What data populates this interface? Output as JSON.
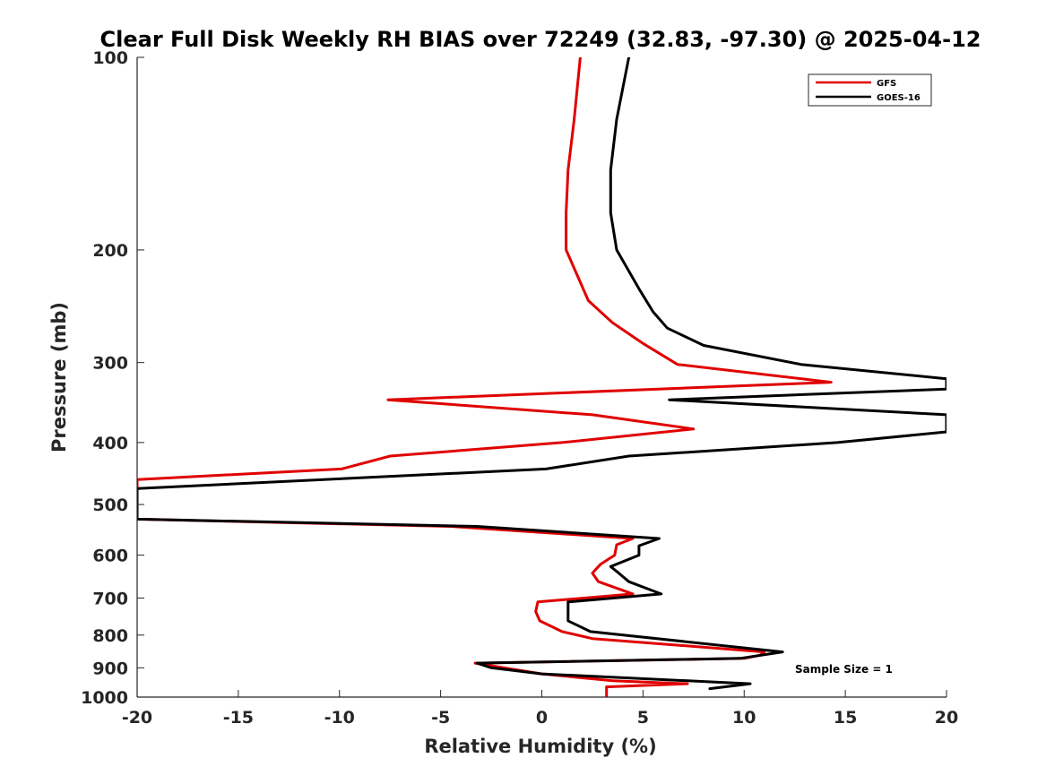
{
  "chart_data": {
    "type": "line",
    "title": "Clear Full Disk Weekly RH BIAS over 72249 (32.83, -97.30) @ 2025-04-12",
    "xlabel": "Relative Humidity (%)",
    "ylabel": "Pressure (mb)",
    "xlim": [
      -20,
      20
    ],
    "ylim": [
      100,
      1000
    ],
    "y_scale": "log",
    "y_reversed": true,
    "grid": false,
    "x_ticks": [
      -20,
      -15,
      -10,
      -5,
      0,
      5,
      10,
      15,
      20
    ],
    "x_tick_labels": [
      "-20",
      "-15",
      "-10",
      "-5",
      "0",
      "5",
      "10",
      "15",
      "20"
    ],
    "y_ticks": [
      100,
      200,
      300,
      400,
      500,
      600,
      700,
      800,
      900,
      1000
    ],
    "y_tick_labels": [
      "100",
      "200",
      "300",
      "400",
      "500",
      "600",
      "700",
      "800",
      "900",
      "1000"
    ],
    "legend_position": "top-right",
    "annotation": "Sample Size = 1",
    "series": [
      {
        "name": "GFS",
        "color": "#e00000",
        "points": [
          [
            1.9,
            100
          ],
          [
            1.6,
            125
          ],
          [
            1.3,
            150
          ],
          [
            1.2,
            175
          ],
          [
            1.2,
            200
          ],
          [
            2.3,
            240
          ],
          [
            3.5,
            260
          ],
          [
            5.0,
            280
          ],
          [
            6.7,
            302
          ],
          [
            14.3,
            322
          ],
          [
            -7.6,
            343
          ],
          [
            2.5,
            362
          ],
          [
            7.5,
            381
          ],
          [
            1.0,
            400
          ],
          [
            -7.5,
            420
          ],
          [
            -9.9,
            440
          ],
          [
            -20,
            457
          ],
          [
            -20,
            527
          ],
          [
            -4.5,
            541
          ],
          [
            4.5,
            565
          ],
          [
            3.7,
            578
          ],
          [
            3.6,
            600
          ],
          [
            2.9,
            620
          ],
          [
            2.5,
            640
          ],
          [
            2.8,
            660
          ],
          [
            4.5,
            690
          ],
          [
            -0.2,
            710
          ],
          [
            -0.3,
            735
          ],
          [
            -0.1,
            760
          ],
          [
            1.0,
            790
          ],
          [
            2.5,
            810
          ],
          [
            11.0,
            850
          ],
          [
            10.8,
            860
          ],
          [
            10.0,
            870
          ],
          [
            -3.3,
            885
          ],
          [
            0.0,
            920
          ],
          [
            3.5,
            943
          ],
          [
            7.2,
            953
          ],
          [
            3.2,
            964
          ],
          [
            3.2,
            970
          ],
          [
            3.2,
            978
          ],
          [
            3.2,
            983
          ],
          [
            3.2,
            988
          ],
          [
            3.2,
            995
          ]
        ]
      },
      {
        "name": "GOES-16",
        "color": "#000000",
        "points": [
          [
            4.3,
            100
          ],
          [
            3.7,
            125
          ],
          [
            3.4,
            150
          ],
          [
            3.4,
            175
          ],
          [
            3.7,
            200
          ],
          [
            4.8,
            230
          ],
          [
            5.5,
            250
          ],
          [
            6.2,
            265
          ],
          [
            8.0,
            282
          ],
          [
            12.8,
            302
          ],
          [
            20,
            318
          ],
          [
            20,
            330
          ],
          [
            6.3,
            343
          ],
          [
            20,
            362
          ],
          [
            20,
            385
          ],
          [
            14.6,
            400
          ],
          [
            4.3,
            420
          ],
          [
            0.2,
            440
          ],
          [
            -20,
            472
          ],
          [
            -20,
            527
          ],
          [
            -3.2,
            541
          ],
          [
            5.8,
            565
          ],
          [
            4.8,
            580
          ],
          [
            4.8,
            600
          ],
          [
            3.4,
            625
          ],
          [
            3.8,
            640
          ],
          [
            4.3,
            660
          ],
          [
            5.9,
            690
          ],
          [
            1.3,
            710
          ],
          [
            1.3,
            735
          ],
          [
            1.3,
            760
          ],
          [
            2.4,
            790
          ],
          [
            11.9,
            850
          ],
          [
            9.8,
            870
          ],
          [
            -3.2,
            885
          ],
          [
            -2.5,
            900
          ],
          [
            0.0,
            920
          ],
          [
            10.3,
            953
          ],
          [
            8.3,
            970
          ]
        ]
      }
    ]
  }
}
